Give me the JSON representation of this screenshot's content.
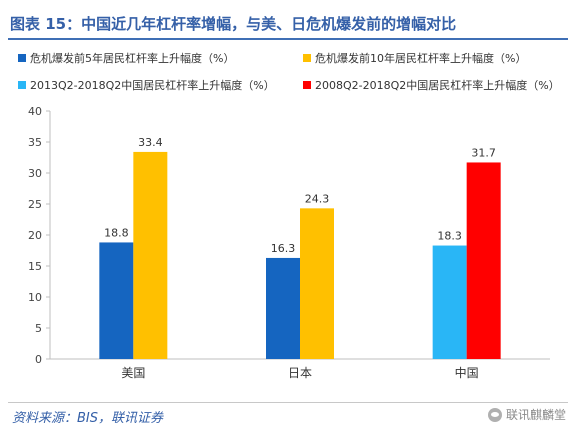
{
  "title": "图表 15：中国近几年杠杆率增幅，与美、日危机爆发前的增幅对比",
  "source": "资料来源：BIS，联讯证券",
  "watermark": "联讯麒麟堂",
  "watermark_icon": "wechat-icon",
  "chart_data": {
    "type": "bar",
    "categories": [
      "美国",
      "日本",
      "中国"
    ],
    "ylim": [
      0,
      40
    ],
    "yticks": [
      0,
      5,
      10,
      15,
      20,
      25,
      30,
      35,
      40
    ],
    "grid": false,
    "legend_position": "top",
    "series": [
      {
        "name": "危机爆发前5年居民杠杆率上升幅度（%）",
        "color": "#1565c0",
        "values": [
          18.8,
          16.3,
          null
        ]
      },
      {
        "name": "危机爆发前10年居民杠杆率上升幅度（%）",
        "color": "#ffc000",
        "values": [
          33.4,
          24.3,
          null
        ]
      },
      {
        "name": "2013Q2-2018Q2中国居民杠杆率上升幅度（%）",
        "color": "#29b6f6",
        "values": [
          null,
          null,
          18.3
        ]
      },
      {
        "name": "2008Q2-2018Q2中国居民杠杆率上升幅度（%）",
        "color": "#ff0000",
        "values": [
          null,
          null,
          31.7
        ]
      }
    ]
  }
}
